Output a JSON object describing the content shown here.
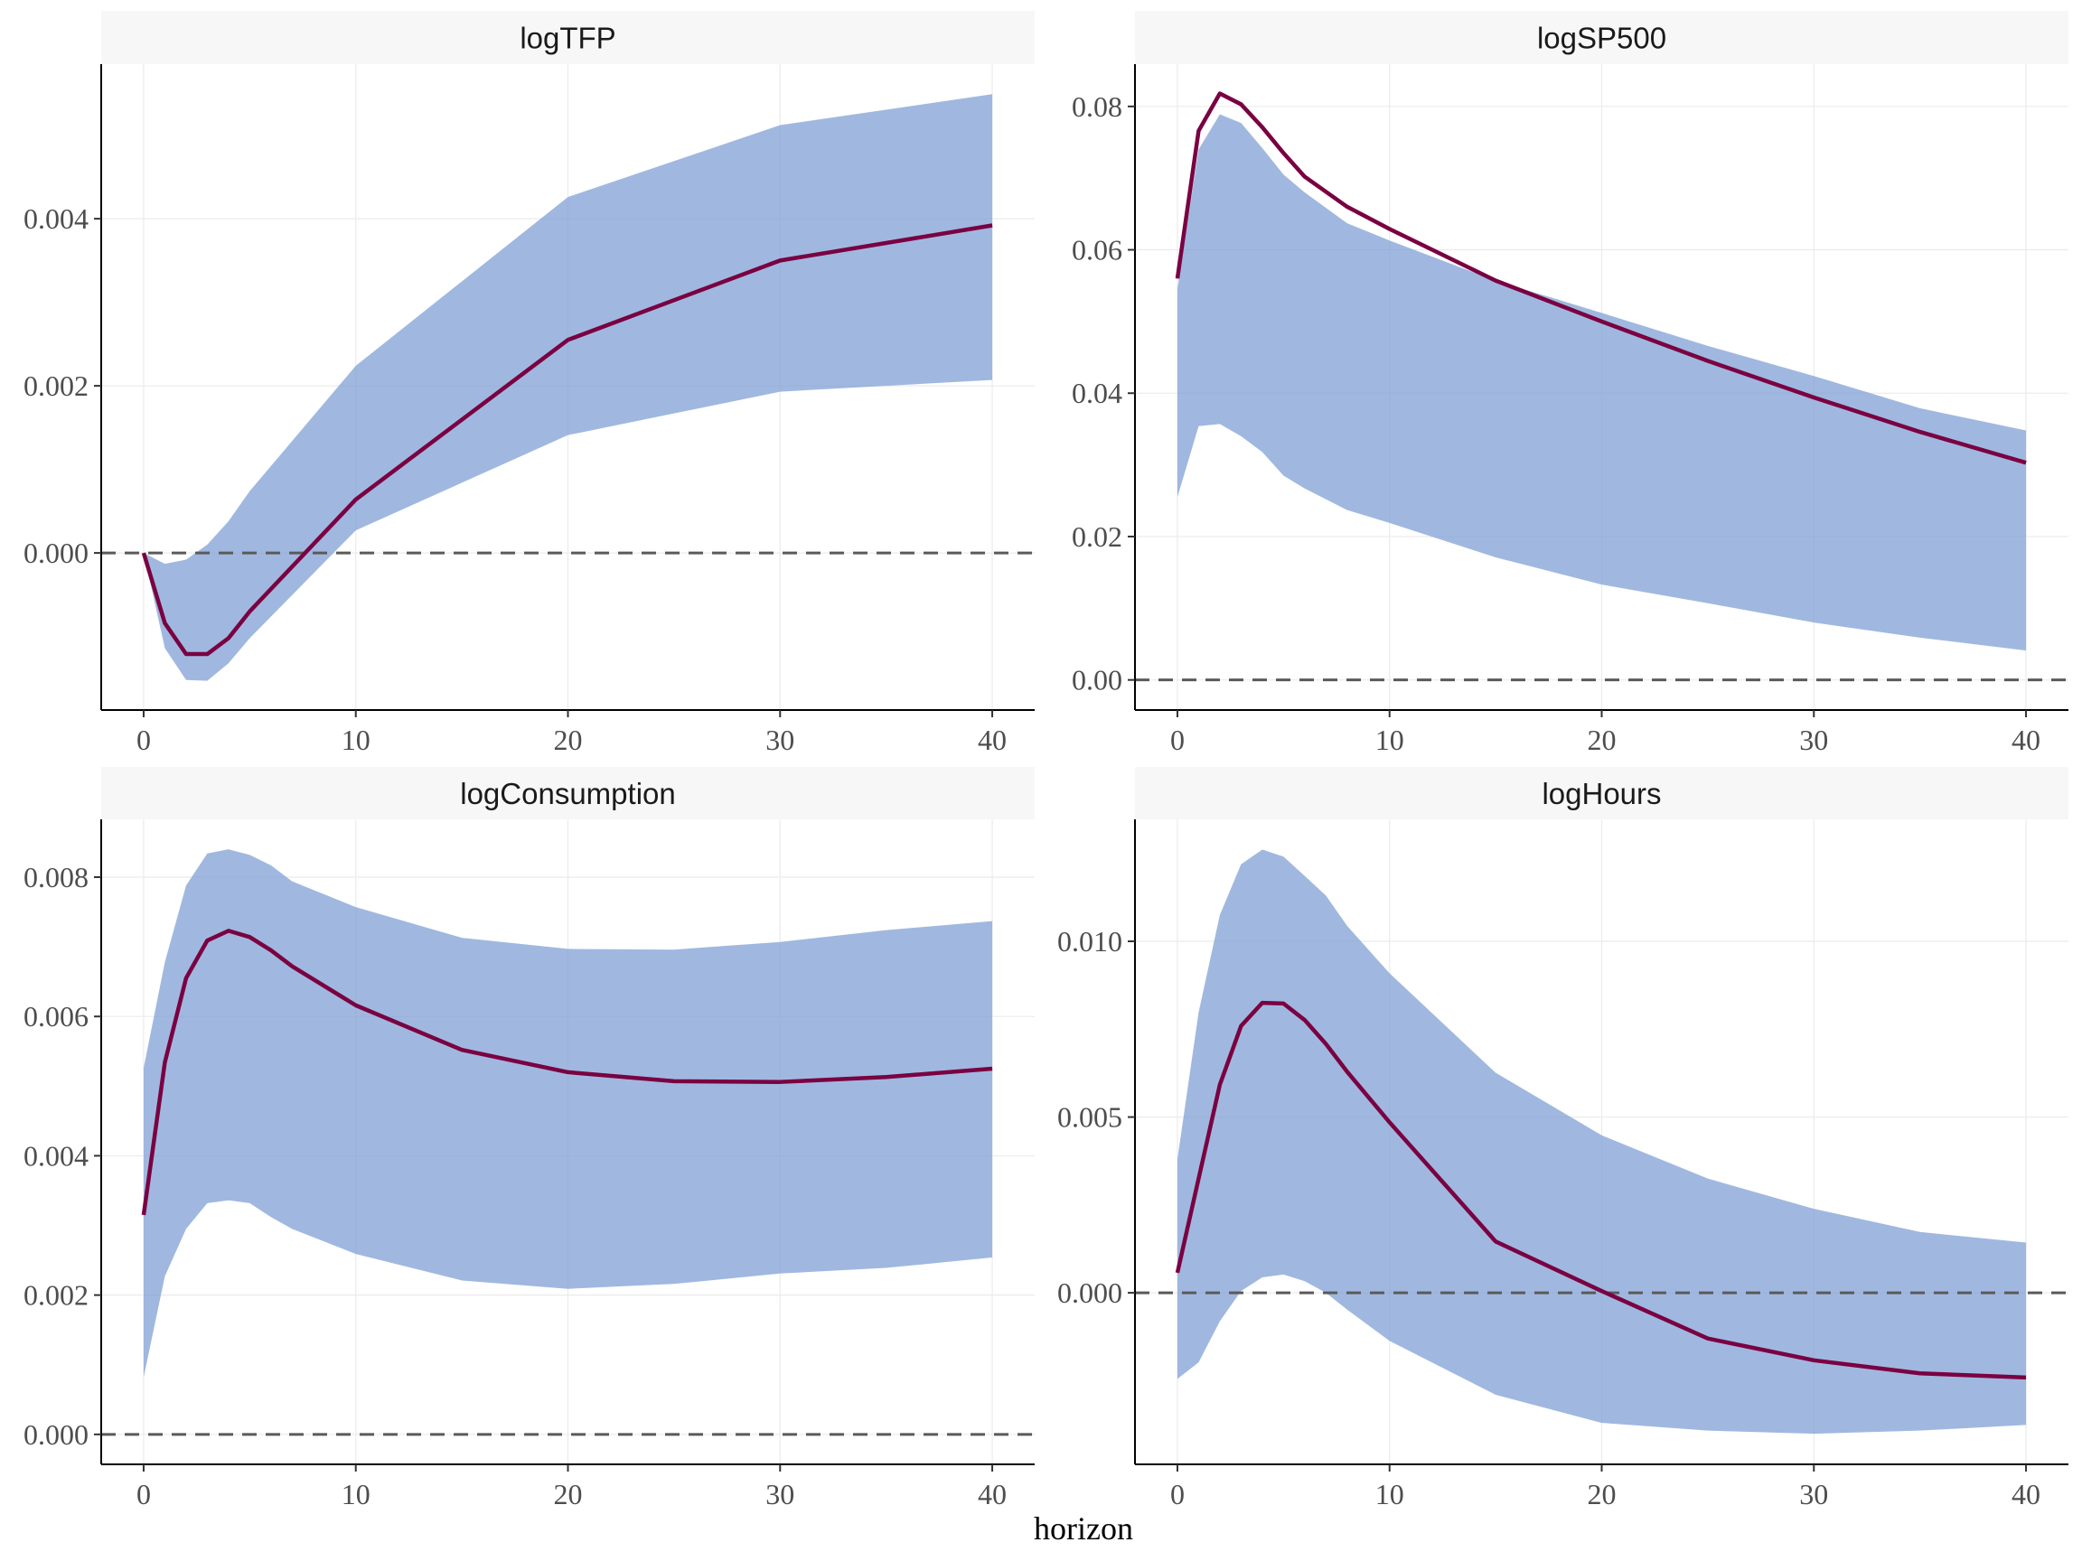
{
  "chart_data": {
    "type": "line",
    "xlabel": "horizon",
    "layout": "2x2 facets",
    "band_color": "#7b9cd4",
    "line_color": "#7a0041",
    "zero_line_color": "#5a5a5a",
    "grid": true,
    "panels": [
      {
        "title": "logTFP",
        "xlim": [
          -2,
          42
        ],
        "ylim": [
          -0.00188,
          0.00585
        ],
        "xticks": [
          0,
          10,
          20,
          30,
          40
        ],
        "xtick_labels": [
          "0",
          "10",
          "20",
          "30",
          "40"
        ],
        "yticks": [
          0.0,
          0.002,
          0.004
        ],
        "ytick_labels": [
          "0.000",
          "0.002",
          "0.004"
        ],
        "x": [
          0,
          1,
          2,
          3,
          4,
          5,
          10,
          20,
          30,
          40
        ],
        "center": [
          0,
          -0.00084,
          -0.00121,
          -0.00121,
          -0.00102,
          -0.0007,
          0.00064,
          0.00255,
          0.0035,
          0.00392
        ],
        "upper": [
          0,
          -0.00013,
          -8e-05,
          0.0001,
          0.00038,
          0.00074,
          0.00224,
          0.00426,
          0.00512,
          0.00549
        ],
        "lower": [
          0,
          -0.00114,
          -0.00152,
          -0.00153,
          -0.00132,
          -0.00102,
          0.00027,
          0.00141,
          0.00193,
          0.00207
        ]
      },
      {
        "title": "logSP500",
        "xlim": [
          -2,
          42
        ],
        "ylim": [
          -0.0042,
          0.0859
        ],
        "xticks": [
          0,
          10,
          20,
          30,
          40
        ],
        "xtick_labels": [
          "0",
          "10",
          "20",
          "30",
          "40"
        ],
        "yticks": [
          0.0,
          0.02,
          0.04,
          0.06,
          0.08
        ],
        "ytick_labels": [
          "0.00",
          "0.02",
          "0.04",
          "0.06",
          "0.08"
        ],
        "x": [
          0,
          1,
          2,
          3,
          4,
          5,
          6,
          8,
          10,
          15,
          20,
          25,
          30,
          35,
          40
        ],
        "center": [
          0.056,
          0.0766,
          0.0818,
          0.0803,
          0.0771,
          0.0735,
          0.0702,
          0.066,
          0.0629,
          0.0557,
          0.05,
          0.0445,
          0.0394,
          0.0346,
          0.0303
        ],
        "upper": [
          0.0545,
          0.074,
          0.0789,
          0.0777,
          0.0742,
          0.0705,
          0.068,
          0.0637,
          0.0613,
          0.0557,
          0.0512,
          0.0466,
          0.0424,
          0.0379,
          0.0348
        ],
        "lower": [
          0.0255,
          0.0354,
          0.0357,
          0.034,
          0.0318,
          0.0285,
          0.0267,
          0.0237,
          0.0219,
          0.0171,
          0.0133,
          0.0107,
          0.008,
          0.0059,
          0.0041
        ]
      },
      {
        "title": "logConsumption",
        "xlim": [
          -2,
          42
        ],
        "ylim": [
          -0.00043,
          0.00883
        ],
        "xticks": [
          0,
          10,
          20,
          30,
          40
        ],
        "xtick_labels": [
          "0",
          "10",
          "20",
          "30",
          "40"
        ],
        "yticks": [
          0.0,
          0.002,
          0.004,
          0.006,
          0.008
        ],
        "ytick_labels": [
          "0.000",
          "0.002",
          "0.004",
          "0.006",
          "0.008"
        ],
        "x": [
          0,
          1,
          2,
          3,
          4,
          5,
          6,
          7,
          10,
          15,
          20,
          25,
          30,
          35,
          40
        ],
        "center": [
          0.00315,
          0.00534,
          0.00655,
          0.00709,
          0.00723,
          0.00714,
          0.00695,
          0.00672,
          0.00616,
          0.00552,
          0.0052,
          0.00507,
          0.00506,
          0.00513,
          0.00525
        ],
        "upper": [
          0.00526,
          0.00678,
          0.00788,
          0.00834,
          0.0084,
          0.00832,
          0.00817,
          0.00794,
          0.00757,
          0.00713,
          0.00697,
          0.00696,
          0.00707,
          0.00724,
          0.00737
        ],
        "lower": [
          0.00082,
          0.00227,
          0.00295,
          0.00332,
          0.00336,
          0.00332,
          0.00312,
          0.00295,
          0.00259,
          0.00221,
          0.00209,
          0.00216,
          0.00231,
          0.00239,
          0.00254
        ]
      },
      {
        "title": "logHours",
        "xlim": [
          -2,
          42
        ],
        "ylim": [
          -0.00488,
          0.01347
        ],
        "xticks": [
          0,
          10,
          20,
          30,
          40
        ],
        "xtick_labels": [
          "0",
          "10",
          "20",
          "30",
          "40"
        ],
        "yticks": [
          0.0,
          0.005,
          0.01
        ],
        "ytick_labels": [
          "0.000",
          "0.005",
          "0.010"
        ],
        "x": [
          0,
          1,
          2,
          3,
          4,
          5,
          6,
          7,
          8,
          10,
          15,
          20,
          25,
          30,
          35,
          40
        ],
        "center": [
          0.00057,
          0.00325,
          0.00592,
          0.00759,
          0.00825,
          0.00823,
          0.00776,
          0.00708,
          0.00629,
          0.00485,
          0.00146,
          5e-05,
          -0.0013,
          -0.00192,
          -0.00229,
          -0.00241
        ],
        "upper": [
          0.0038,
          0.00798,
          0.01075,
          0.01219,
          0.01261,
          0.01241,
          0.01186,
          0.0113,
          0.01044,
          0.00909,
          0.00626,
          0.00448,
          0.00325,
          0.00239,
          0.00173,
          0.00143
        ],
        "lower": [
          -0.00245,
          -0.00198,
          -0.00081,
          5e-05,
          0.00044,
          0.00052,
          0.00033,
          0.0,
          -0.00048,
          -0.00137,
          -0.0029,
          -0.0037,
          -0.00392,
          -0.00401,
          -0.00392,
          -0.00376
        ]
      }
    ]
  }
}
